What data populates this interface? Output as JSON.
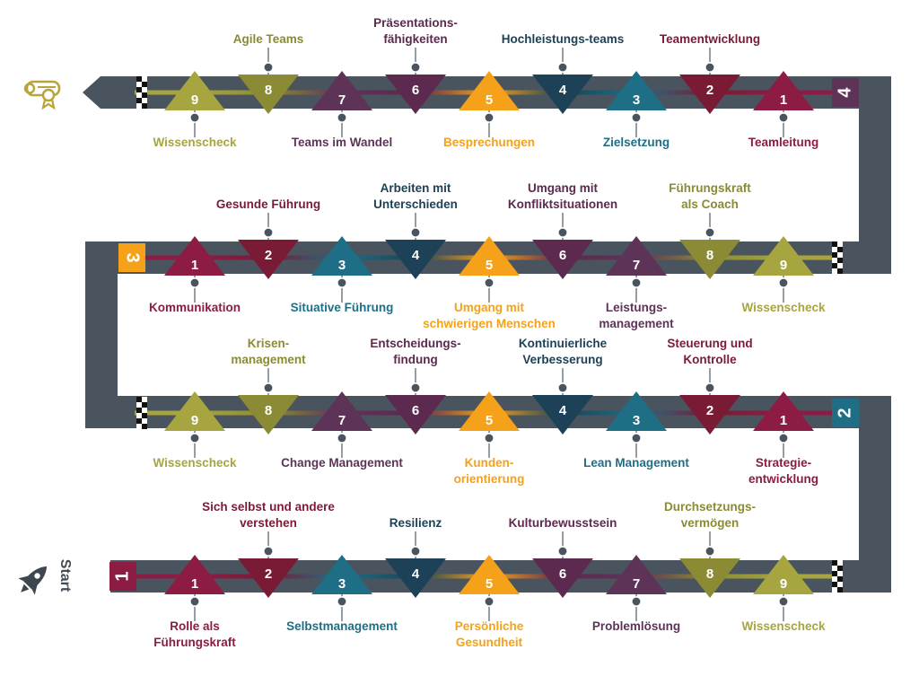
{
  "colors": {
    "road": "#4a545e",
    "crimson": "#8c1c44",
    "maroon": "#7a1b36",
    "teal": "#1e6f86",
    "navy": "#1d4257",
    "orange": "#f5a21a",
    "plum": "#5b2a4e",
    "violet": "#5e3358",
    "olive": "#8a8b34",
    "khaki": "#a7a53f",
    "gold": "#b5a53a"
  },
  "start_label": "Start",
  "rows": [
    {
      "level": "1",
      "stations": [
        {
          "num": "1",
          "label": [
            "Rolle als",
            "Führungskraft"
          ]
        },
        {
          "num": "2",
          "label": [
            "Sich selbst und andere",
            "verstehen"
          ]
        },
        {
          "num": "3",
          "label": [
            "Selbstmanagement"
          ]
        },
        {
          "num": "4",
          "label": [
            "Resilienz"
          ]
        },
        {
          "num": "5",
          "label": [
            "Persönliche",
            "Gesundheit"
          ]
        },
        {
          "num": "6",
          "label": [
            "Kulturbewusstsein"
          ]
        },
        {
          "num": "7",
          "label": [
            "Problemlösung"
          ]
        },
        {
          "num": "8",
          "label": [
            "Durchsetzungs-",
            "vermögen"
          ]
        },
        {
          "num": "9",
          "label": [
            "Wissenscheck"
          ]
        }
      ]
    },
    {
      "level": "2",
      "stations": [
        {
          "num": "1",
          "label": [
            "Strategie-",
            "entwicklung"
          ]
        },
        {
          "num": "2",
          "label": [
            "Steuerung und",
            "Kontrolle"
          ]
        },
        {
          "num": "3",
          "label": [
            "Lean Management"
          ]
        },
        {
          "num": "4",
          "label": [
            "Kontinuierliche",
            "Verbesserung"
          ]
        },
        {
          "num": "5",
          "label": [
            "Kunden-",
            "orientierung"
          ]
        },
        {
          "num": "6",
          "label": [
            "Entscheidungs-",
            "findung"
          ]
        },
        {
          "num": "7",
          "label": [
            "Change Management"
          ]
        },
        {
          "num": "8",
          "label": [
            "Krisen-",
            "management"
          ]
        },
        {
          "num": "9",
          "label": [
            "Wissenscheck"
          ]
        }
      ]
    },
    {
      "level": "3",
      "stations": [
        {
          "num": "1",
          "label": [
            "Kommunikation"
          ]
        },
        {
          "num": "2",
          "label": [
            "Gesunde Führung"
          ]
        },
        {
          "num": "3",
          "label": [
            "Situative Führung"
          ]
        },
        {
          "num": "4",
          "label": [
            "Arbeiten mit",
            "Unterschieden"
          ]
        },
        {
          "num": "5",
          "label": [
            "Umgang mit",
            "schwierigen Menschen"
          ]
        },
        {
          "num": "6",
          "label": [
            "Umgang mit",
            "Konfliktsituationen"
          ]
        },
        {
          "num": "7",
          "label": [
            "Leistungs-",
            "management"
          ]
        },
        {
          "num": "8",
          "label": [
            "Führungskraft",
            "als Coach"
          ]
        },
        {
          "num": "9",
          "label": [
            "Wissenscheck"
          ]
        }
      ]
    },
    {
      "level": "4",
      "stations": [
        {
          "num": "1",
          "label": [
            "Teamleitung"
          ]
        },
        {
          "num": "2",
          "label": [
            "Teamentwicklung"
          ]
        },
        {
          "num": "3",
          "label": [
            "Zielsetzung"
          ]
        },
        {
          "num": "4",
          "label": [
            "Hochleistungs-teams"
          ]
        },
        {
          "num": "5",
          "label": [
            "Besprechungen"
          ]
        },
        {
          "num": "6",
          "label": [
            "Präsentations-",
            "fähigkeiten"
          ]
        },
        {
          "num": "7",
          "label": [
            "Teams im Wandel"
          ]
        },
        {
          "num": "8",
          "label": [
            "Agile Teams"
          ]
        },
        {
          "num": "9",
          "label": [
            "Wissenscheck"
          ]
        }
      ]
    }
  ],
  "icons": {
    "start": "rocket-icon",
    "finish": "diploma-icon"
  }
}
